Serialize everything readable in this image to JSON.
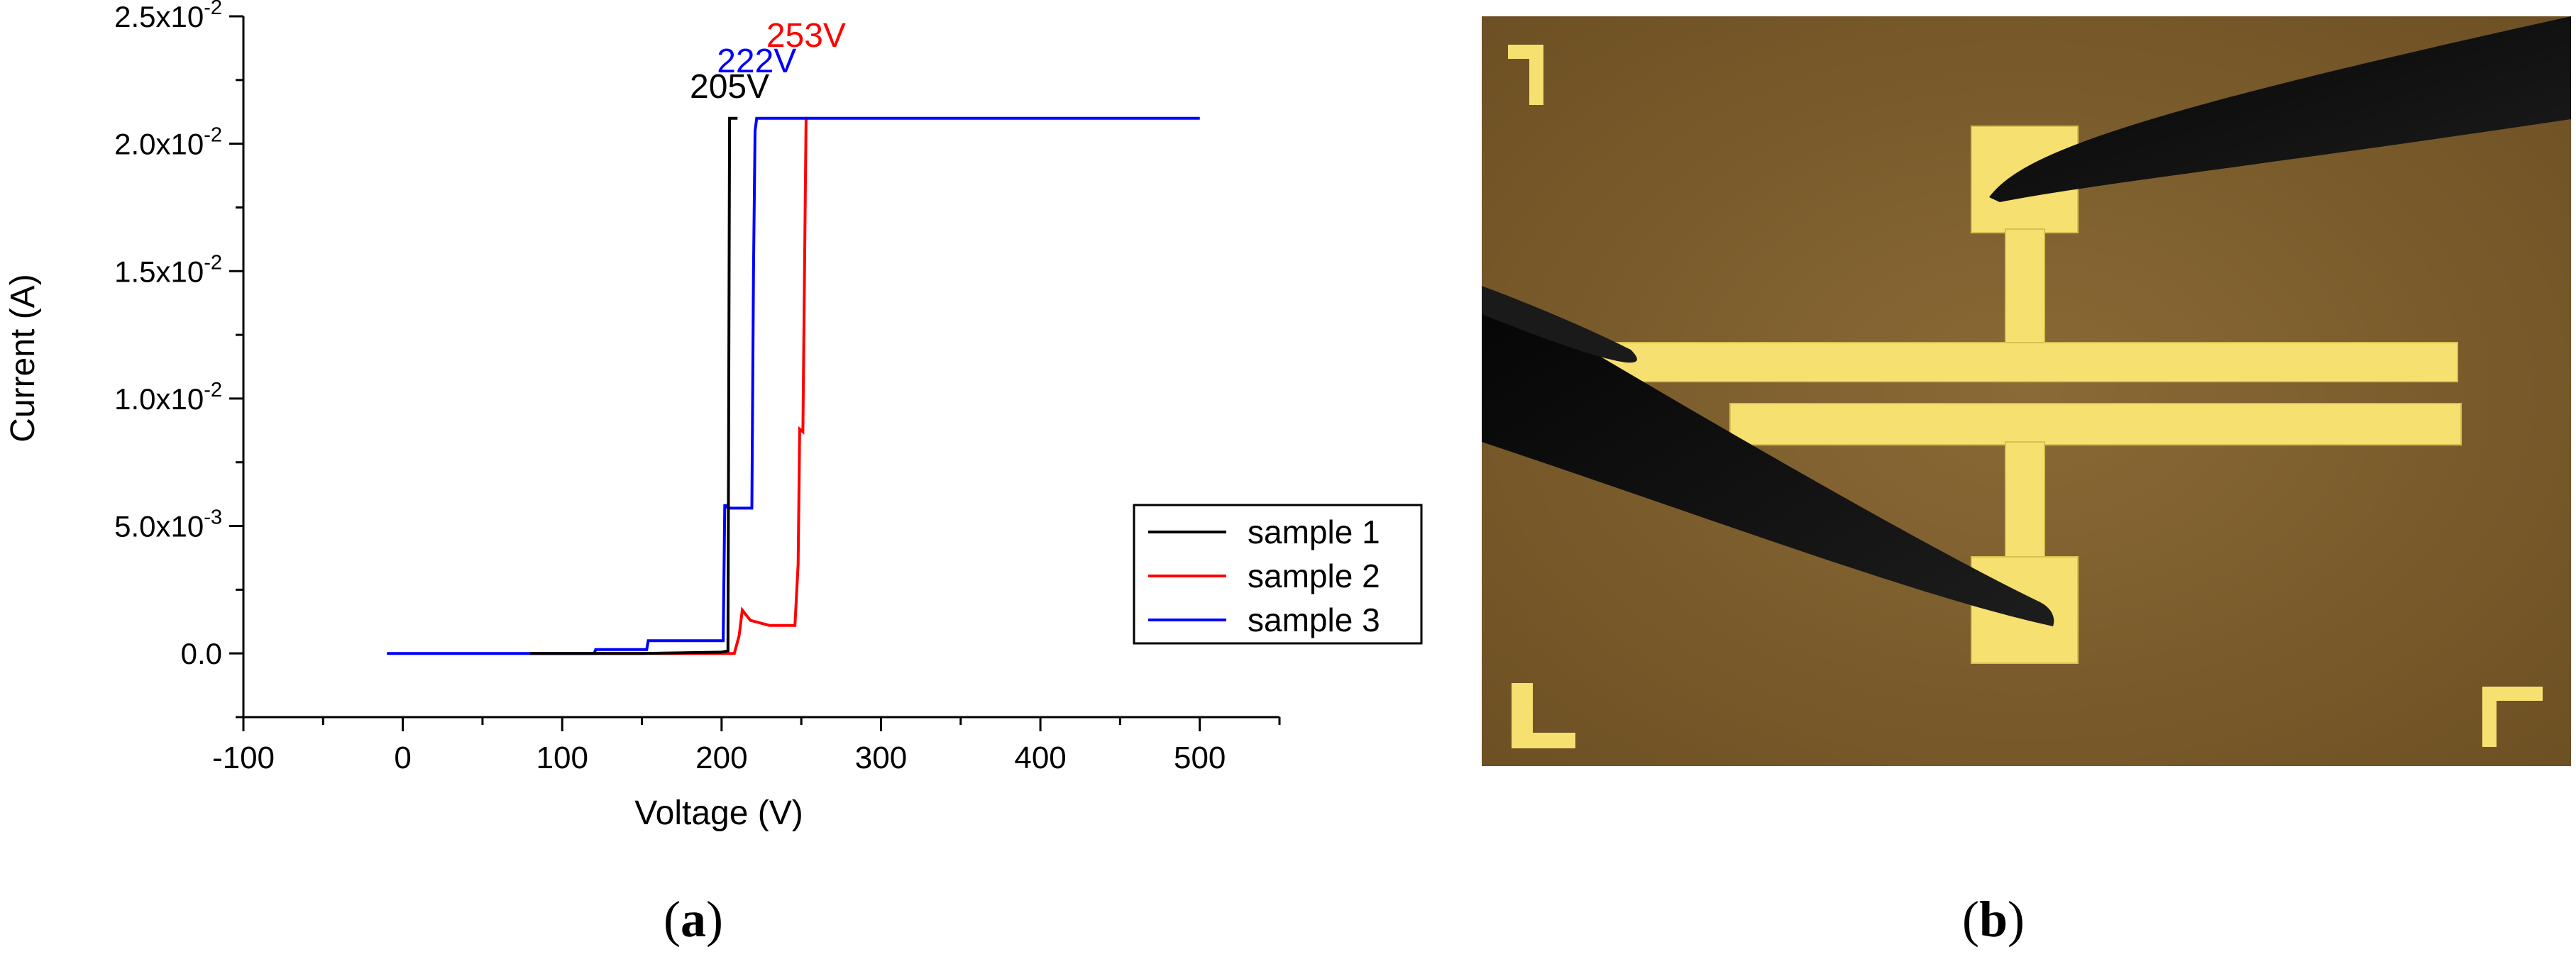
{
  "chart_data": {
    "type": "line",
    "xlabel": "Voltage (V)",
    "ylabel": "Current (A)",
    "xlim": [
      -100,
      550
    ],
    "ylim": [
      -0.0025,
      0.025
    ],
    "x_ticks": [
      -100,
      0,
      100,
      200,
      300,
      400,
      500
    ],
    "x_tick_labels": [
      "-100",
      "0",
      "100",
      "200",
      "300",
      "400",
      "500"
    ],
    "y_ticks": [
      0,
      0.005,
      0.01,
      0.015,
      0.02,
      0.025
    ],
    "y_tick_labels": [
      "0.0",
      "5.0x10-3",
      "1.0x10-2",
      "1.5x10-2",
      "2.0x10-2",
      "2.5x10-2"
    ],
    "grid": false,
    "legend_position": "lower-right",
    "series": [
      {
        "name": "sample 1",
        "color": "#000000",
        "points": [
          [
            80,
            0
          ],
          [
            150,
            0
          ],
          [
            200,
            5e-05
          ],
          [
            204,
            0.0001
          ],
          [
            205,
            0.021
          ],
          [
            210,
            0.021
          ]
        ]
      },
      {
        "name": "sample 2",
        "color": "#ff0000",
        "points": [
          [
            80,
            0
          ],
          [
            130,
            0
          ],
          [
            208,
            0
          ],
          [
            211,
            0.0007
          ],
          [
            213,
            0.0017
          ],
          [
            218,
            0.0013
          ],
          [
            230,
            0.0011
          ],
          [
            246,
            0.0011
          ],
          [
            248,
            0.0035
          ],
          [
            249,
            0.0088
          ],
          [
            251,
            0.0087
          ],
          [
            253,
            0.021
          ],
          [
            254,
            0.021
          ]
        ]
      },
      {
        "name": "sample 3",
        "color": "#0000ff",
        "points": [
          [
            -10,
            0
          ],
          [
            120,
            0
          ],
          [
            121,
            0.00015
          ],
          [
            153,
            0.00015
          ],
          [
            154,
            0.0005
          ],
          [
            201,
            0.0005
          ],
          [
            202,
            0.0058
          ],
          [
            203,
            0.0058
          ],
          [
            204,
            0.0057
          ],
          [
            219,
            0.0057
          ],
          [
            220,
            0.015
          ],
          [
            221,
            0.0205
          ],
          [
            222,
            0.021
          ],
          [
            500,
            0.021
          ]
        ]
      }
    ],
    "annotations": [
      {
        "text": "205V",
        "x": 205,
        "y": 0.0218,
        "color": "#000000"
      },
      {
        "text": "222V",
        "x": 222,
        "y": 0.0228,
        "color": "#0000ff"
      },
      {
        "text": "253V",
        "x": 253,
        "y": 0.0238,
        "color": "#ff0000"
      }
    ]
  },
  "panels": {
    "a_label": "a",
    "b_label": "b"
  },
  "colors": {
    "photo_background": "#7a5a2a",
    "gold_electrode": "#f5e070",
    "probe": "#0e0e0e"
  }
}
